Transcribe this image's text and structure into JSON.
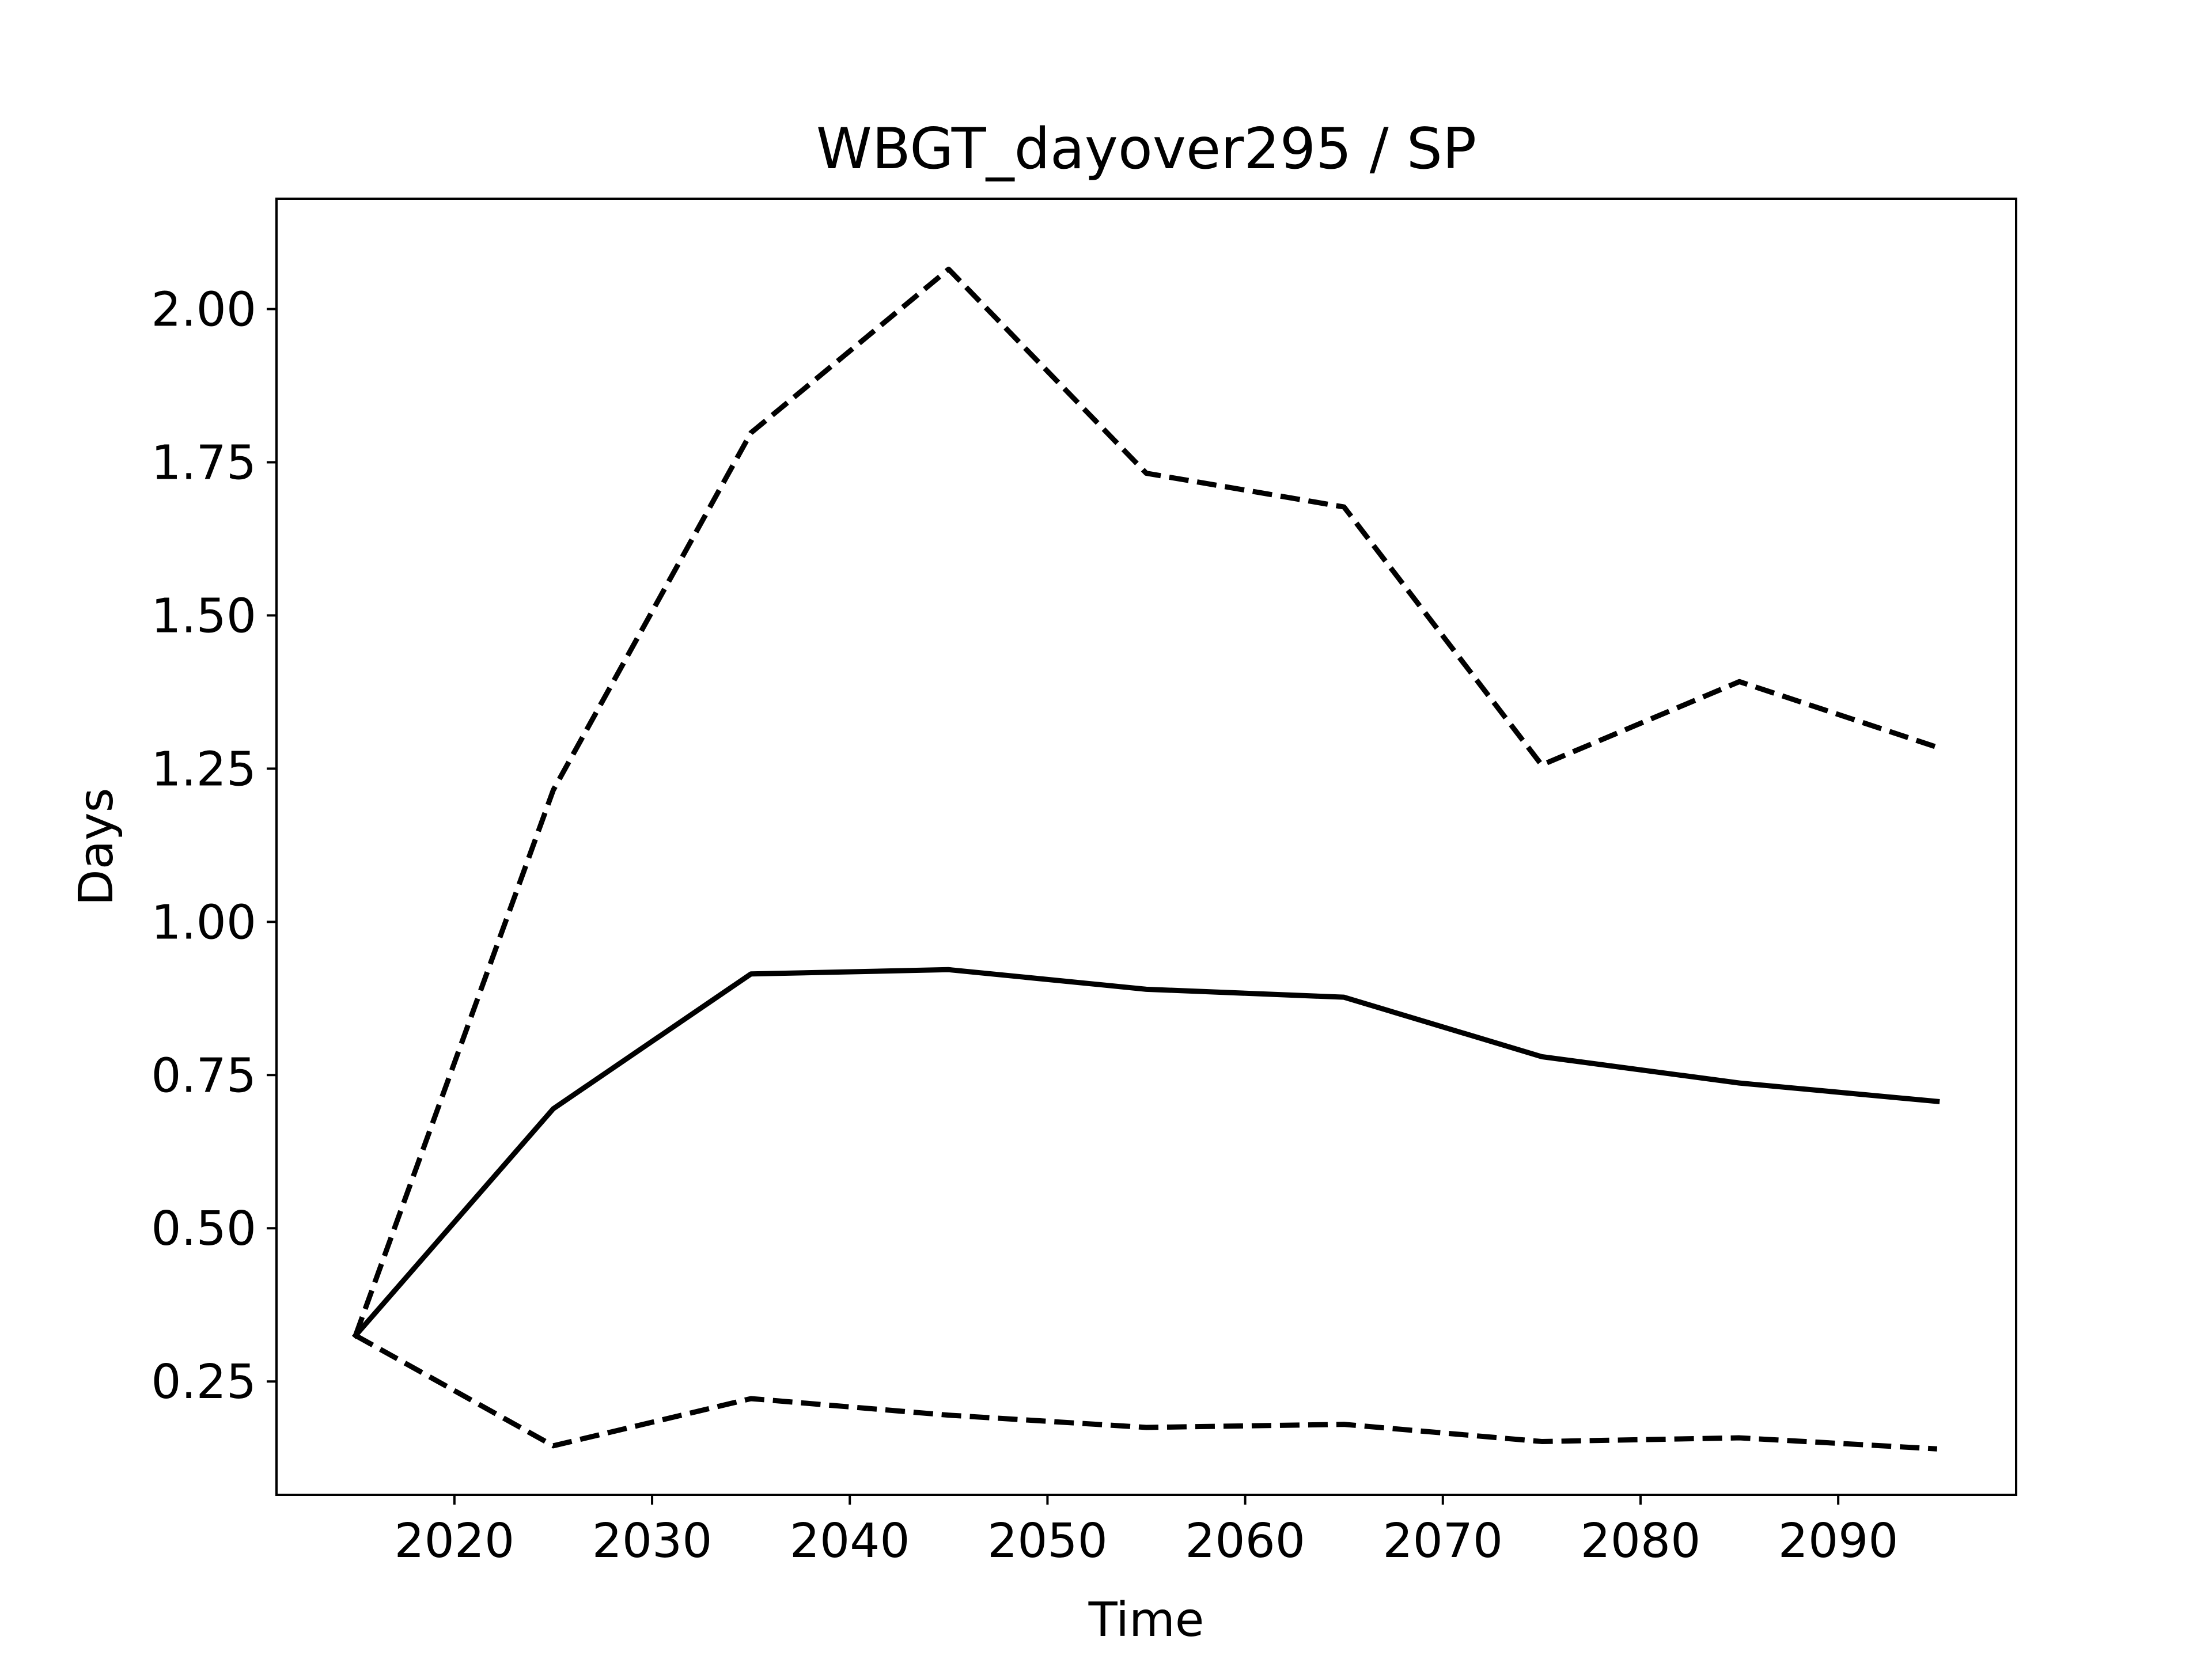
{
  "chart_data": {
    "type": "line",
    "title": "WBGT_dayover295 / SP",
    "xlabel": "Time",
    "ylabel": "Days",
    "xlim": [
      2011,
      2099
    ],
    "ylim": [
      0.065,
      2.18
    ],
    "xticks": [
      2020,
      2030,
      2040,
      2050,
      2060,
      2070,
      2080,
      2090
    ],
    "xtick_labels": [
      "2020",
      "2030",
      "2040",
      "2050",
      "2060",
      "2070",
      "2080",
      "2090"
    ],
    "yticks": [
      0.25,
      0.5,
      0.75,
      1.0,
      1.25,
      1.5,
      1.75,
      2.0
    ],
    "ytick_labels": [
      "0.25",
      "0.50",
      "0.75",
      "1.00",
      "1.25",
      "1.50",
      "1.75",
      "2.00"
    ],
    "grid": false,
    "x": [
      2015,
      2025,
      2035,
      2045,
      2055,
      2065,
      2075,
      2085,
      2095
    ],
    "series": [
      {
        "style": "solid",
        "color": "#000000",
        "values": [
          0.325,
          0.695,
          0.915,
          0.922,
          0.89,
          0.877,
          0.78,
          0.737,
          0.707
        ]
      },
      {
        "style": "dashed",
        "color": "#000000",
        "values": [
          0.325,
          1.215,
          1.798,
          2.065,
          1.732,
          1.677,
          1.256,
          1.392,
          1.285
        ]
      },
      {
        "style": "dashed",
        "color": "#000000",
        "values": [
          0.325,
          0.145,
          0.222,
          0.195,
          0.175,
          0.18,
          0.152,
          0.158,
          0.14
        ]
      }
    ]
  }
}
